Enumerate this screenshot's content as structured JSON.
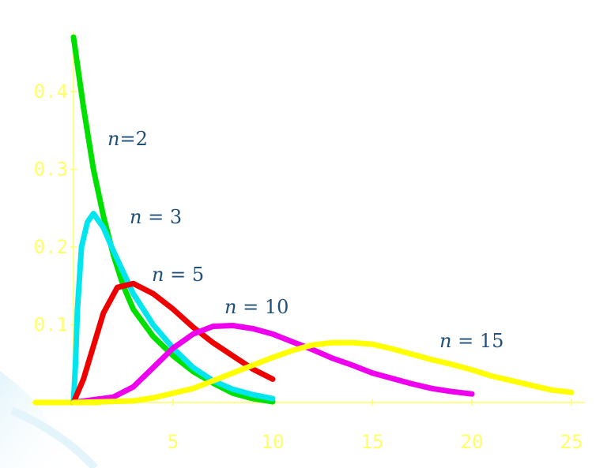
{
  "chart_data": {
    "type": "line",
    "title": "",
    "xlabel": "",
    "ylabel": "",
    "xlim": [
      0,
      25
    ],
    "ylim": [
      0,
      0.47
    ],
    "x_ticks": [
      5,
      10,
      15,
      20,
      25
    ],
    "x_tick_labels": [
      "5",
      "10",
      "15",
      "20",
      "25"
    ],
    "y_ticks": [
      0.1,
      0.2,
      0.3,
      0.4
    ],
    "y_tick_labels": [
      "0.1",
      "0.2",
      "0.3",
      "0.4"
    ],
    "grid": false,
    "axis_color": "#ffff66",
    "series": [
      {
        "label_var": "n",
        "label_op": "=",
        "label_val": "2",
        "color": "#00e000",
        "points": [
          [
            0,
            0.47
          ],
          [
            0.5,
            0.38
          ],
          [
            1,
            0.3
          ],
          [
            1.5,
            0.24
          ],
          [
            2,
            0.19
          ],
          [
            2.5,
            0.15
          ],
          [
            3,
            0.12
          ],
          [
            4,
            0.085
          ],
          [
            5,
            0.06
          ],
          [
            6,
            0.04
          ],
          [
            7,
            0.025
          ],
          [
            8,
            0.012
          ],
          [
            9,
            0.005
          ],
          [
            10,
            0.001
          ]
        ]
      },
      {
        "label_var": "n",
        "label_op": " = ",
        "label_val": "3",
        "color": "#00e5ee",
        "points": [
          [
            0,
            0
          ],
          [
            0.1,
            0.05
          ],
          [
            0.2,
            0.12
          ],
          [
            0.4,
            0.2
          ],
          [
            0.7,
            0.232
          ],
          [
            1,
            0.243
          ],
          [
            1.5,
            0.225
          ],
          [
            2,
            0.195
          ],
          [
            3,
            0.14
          ],
          [
            4,
            0.1
          ],
          [
            5,
            0.07
          ],
          [
            6,
            0.045
          ],
          [
            7,
            0.028
          ],
          [
            8,
            0.017
          ],
          [
            9,
            0.01
          ],
          [
            10,
            0.005
          ]
        ]
      },
      {
        "label_var": "n",
        "label_op": " = ",
        "label_val": "5",
        "color": "#ee0000",
        "points": [
          [
            0,
            0
          ],
          [
            0.5,
            0.03
          ],
          [
            1.5,
            0.115
          ],
          [
            2.2,
            0.148
          ],
          [
            3,
            0.153
          ],
          [
            4,
            0.14
          ],
          [
            5,
            0.12
          ],
          [
            6,
            0.097
          ],
          [
            7,
            0.077
          ],
          [
            8,
            0.06
          ],
          [
            9,
            0.043
          ],
          [
            10,
            0.03
          ]
        ]
      },
      {
        "label_var": "n",
        "label_op": " = ",
        "label_val": "10",
        "color": "#ee00ee",
        "points": [
          [
            0,
            0
          ],
          [
            2,
            0.007
          ],
          [
            3,
            0.02
          ],
          [
            4,
            0.045
          ],
          [
            5,
            0.07
          ],
          [
            6,
            0.088
          ],
          [
            7,
            0.098
          ],
          [
            8,
            0.099
          ],
          [
            9,
            0.095
          ],
          [
            10,
            0.088
          ],
          [
            11,
            0.078
          ],
          [
            12,
            0.068
          ],
          [
            13,
            0.057
          ],
          [
            14,
            0.048
          ],
          [
            15,
            0.038
          ],
          [
            16,
            0.031
          ],
          [
            17,
            0.024
          ],
          [
            18,
            0.018
          ],
          [
            19,
            0.014
          ],
          [
            20,
            0.011
          ]
        ]
      },
      {
        "label_var": "n",
        "label_op": " = ",
        "label_val": "15",
        "color": "#ffff00",
        "points": [
          [
            0,
            0
          ],
          [
            3,
            0.002
          ],
          [
            4,
            0.006
          ],
          [
            6,
            0.018
          ],
          [
            8,
            0.038
          ],
          [
            10,
            0.058
          ],
          [
            11,
            0.067
          ],
          [
            12,
            0.074
          ],
          [
            13,
            0.077
          ],
          [
            14,
            0.077
          ],
          [
            15,
            0.075
          ],
          [
            16,
            0.069
          ],
          [
            17,
            0.062
          ],
          [
            18,
            0.055
          ],
          [
            19,
            0.049
          ],
          [
            20,
            0.042
          ],
          [
            21,
            0.034
          ],
          [
            22,
            0.028
          ],
          [
            23,
            0.022
          ],
          [
            24,
            0.016
          ],
          [
            25,
            0.013
          ]
        ]
      }
    ]
  }
}
